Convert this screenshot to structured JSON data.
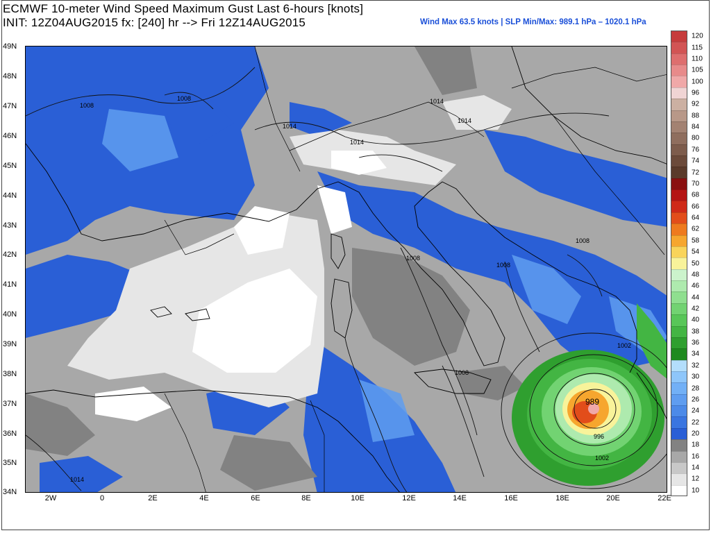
{
  "header": {
    "title_line1": "ECMWF 10-meter Wind Speed Maximum Gust Last 6-hours [knots]",
    "title_line2": "INIT: 12Z04AUG2015 fx: [240] hr --> Fri 12Z14AUG2015",
    "stats": "Wind Max 63.5 knots | SLP Min/Max: 989.1 hPa – 1020.1 hPa"
  },
  "axes": {
    "lat_labels": [
      "49N",
      "48N",
      "47N",
      "46N",
      "45N",
      "44N",
      "43N",
      "42N",
      "41N",
      "40N",
      "39N",
      "38N",
      "37N",
      "36N",
      "35N",
      "34N"
    ],
    "lon_labels": [
      "2W",
      "0",
      "2E",
      "4E",
      "6E",
      "8E",
      "10E",
      "12E",
      "14E",
      "16E",
      "18E",
      "20E",
      "22E"
    ]
  },
  "isobars": [
    "1008",
    "1008",
    "1014",
    "1014",
    "1014",
    "1014",
    "1008",
    "1008",
    "1008",
    "1008",
    "1002",
    "989",
    "996",
    "1002",
    "1014"
  ],
  "colorbar": {
    "levels": [
      "10",
      "12",
      "14",
      "16",
      "18",
      "20",
      "22",
      "24",
      "26",
      "28",
      "30",
      "32",
      "34",
      "36",
      "38",
      "40",
      "42",
      "44",
      "46",
      "48",
      "50",
      "54",
      "58",
      "62",
      "64",
      "66",
      "68",
      "70",
      "72",
      "74",
      "76",
      "80",
      "84",
      "88",
      "92",
      "96",
      "100",
      "105",
      "110",
      "115",
      "120"
    ],
    "colors": [
      "#ffffff",
      "#e6e6e6",
      "#c8c8c8",
      "#a8a8a8",
      "#828282",
      "#2a5fd6",
      "#3a75e0",
      "#4c8ae8",
      "#5f9df0",
      "#72b0f6",
      "#8ec6fa",
      "#b3defc",
      "#1f8a1f",
      "#2f9f2f",
      "#43b543",
      "#58c658",
      "#72d372",
      "#8fdf8f",
      "#aeeaae",
      "#ccf3cc",
      "#f8f39a",
      "#f9d45a",
      "#f6a62e",
      "#ee7a1e",
      "#e24d1a",
      "#cf2a18",
      "#b41414",
      "#8a1010",
      "#5a3a2a",
      "#6b4a3a",
      "#7d5c4c",
      "#8f6e5e",
      "#a38272",
      "#b89888",
      "#ccb0a2",
      "#f0d4d4",
      "#f0a8a8",
      "#e88a8a",
      "#de6e6e",
      "#d25454",
      "#c63c3c"
    ]
  }
}
